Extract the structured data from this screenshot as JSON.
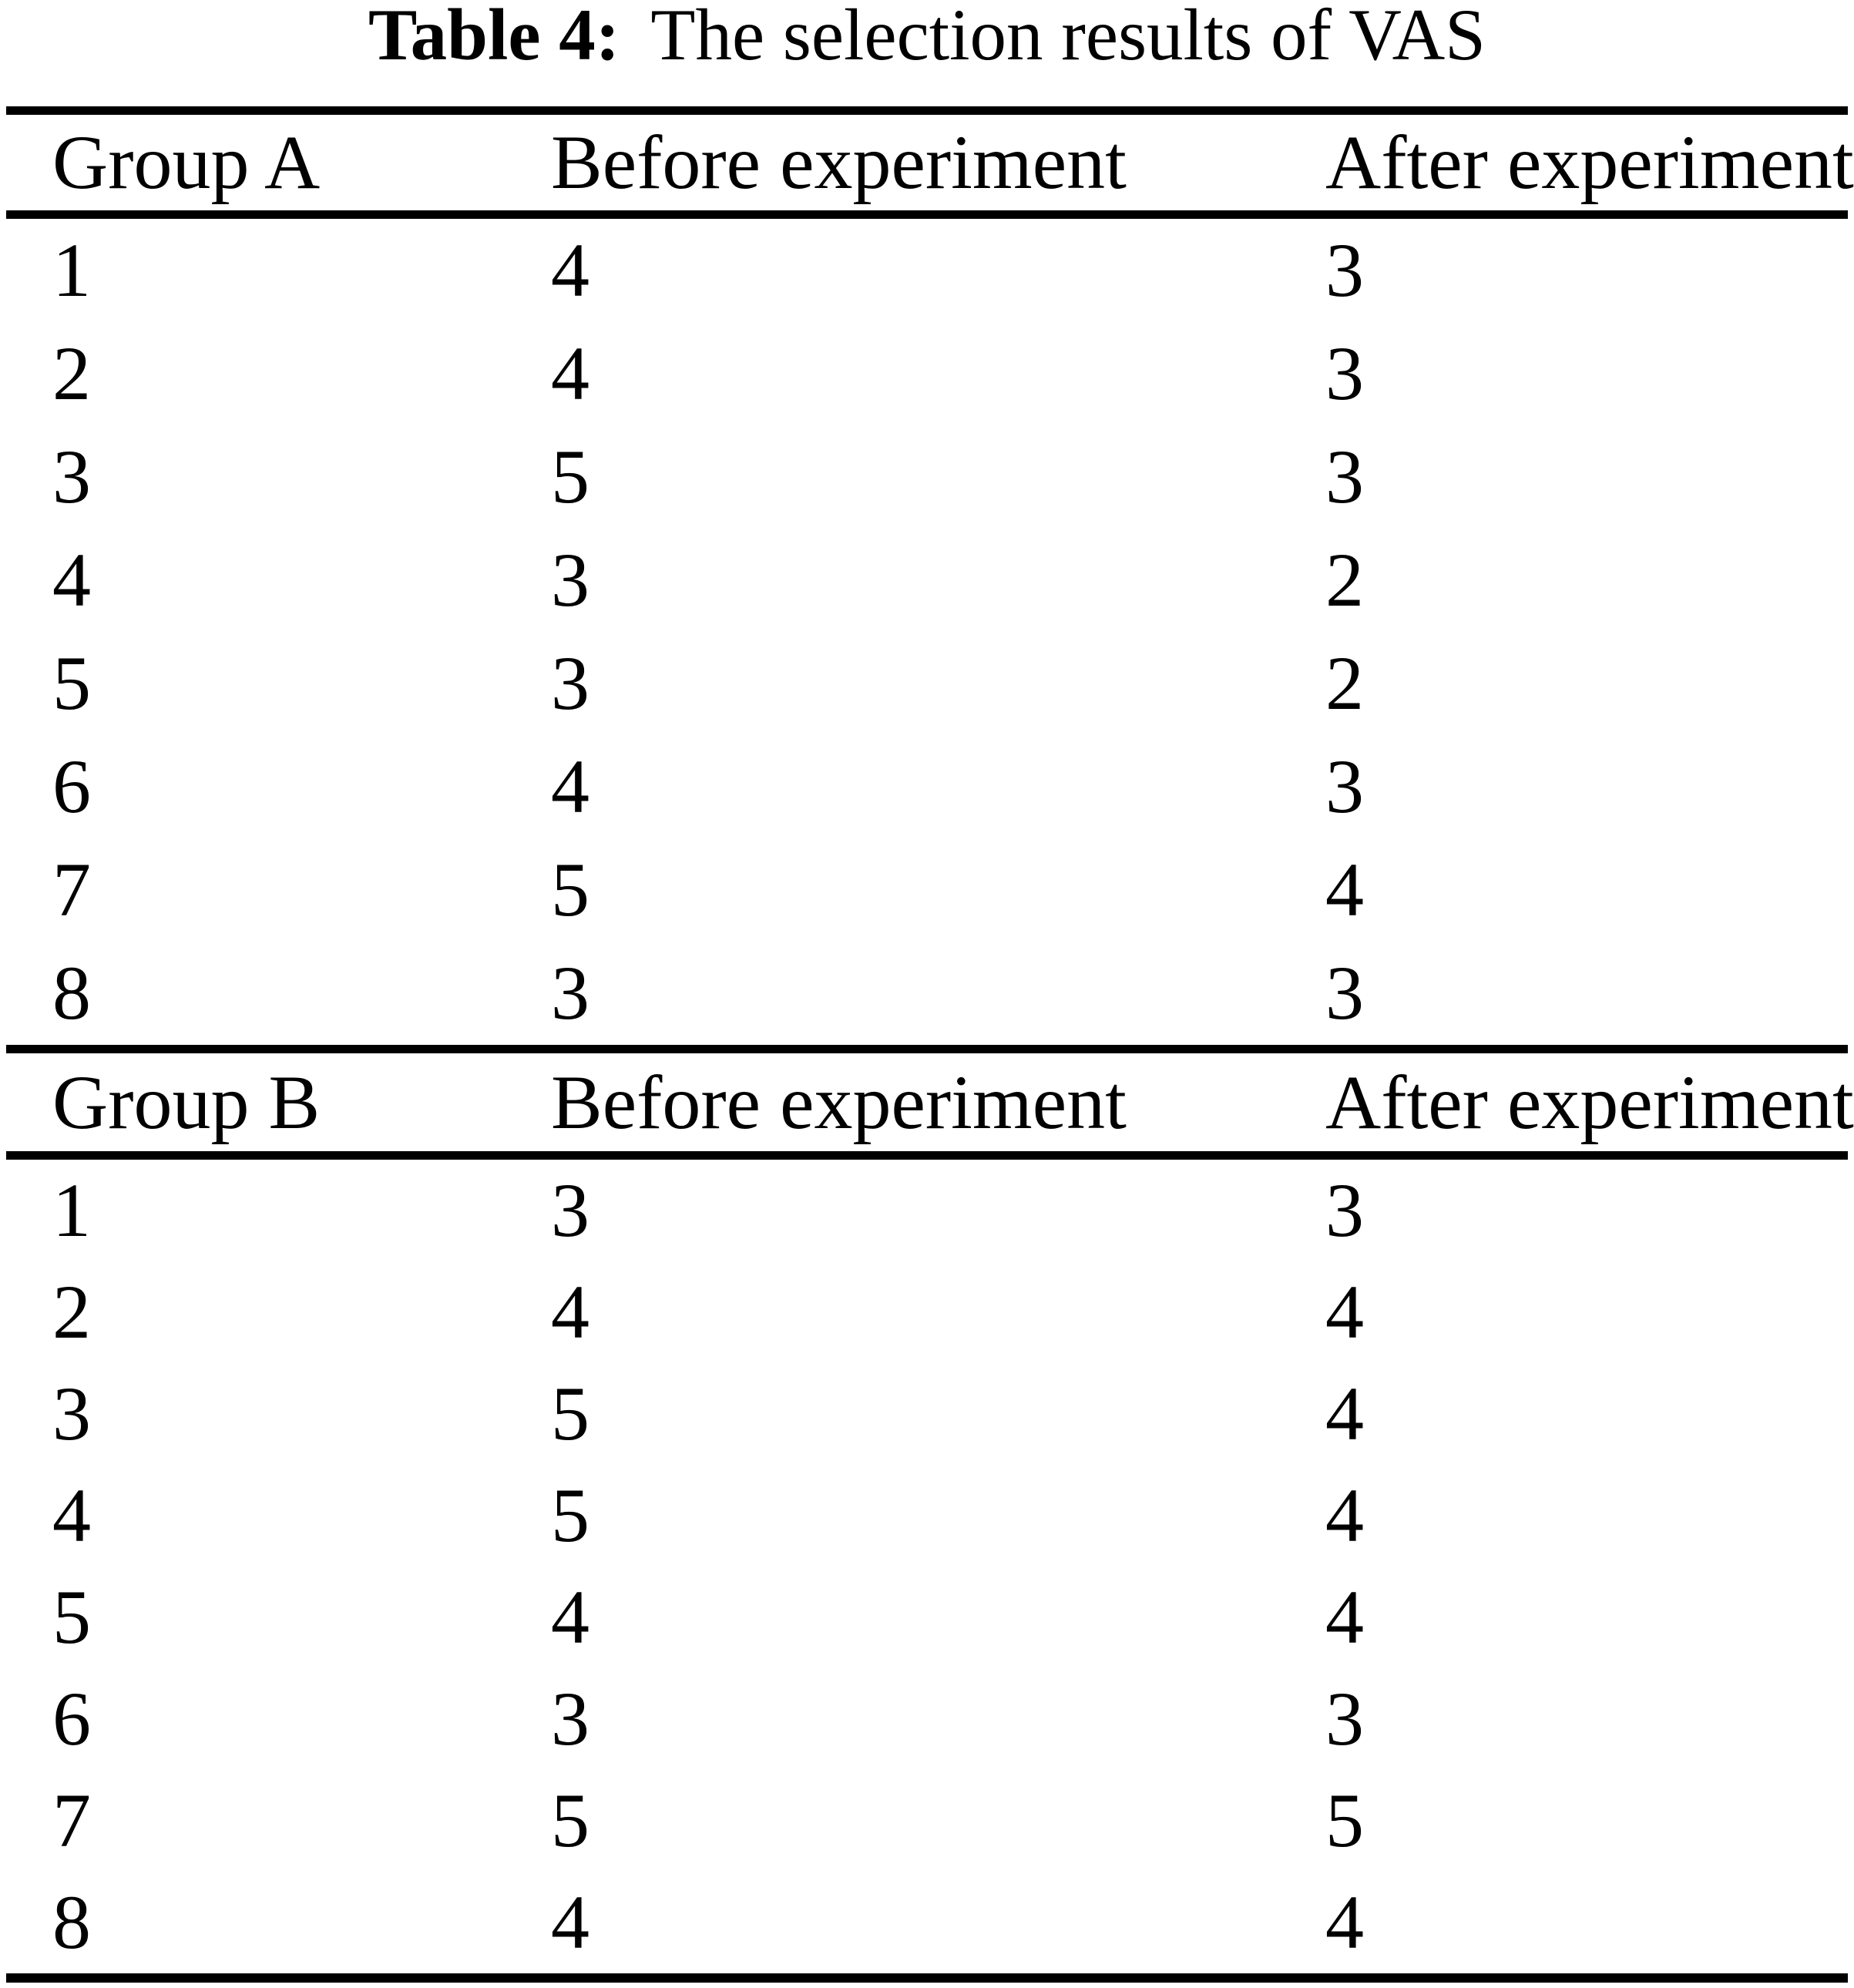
{
  "title": {
    "label": "Table 4:",
    "text": "The selection results of VAS"
  },
  "colors": {
    "text": "#000000",
    "background": "#ffffff",
    "rule": "#000000"
  },
  "tables": [
    {
      "group_header": "Group A",
      "col2_header": "Before experiment",
      "col3_header": "After experiment",
      "rows": [
        {
          "id": "1",
          "before": "4",
          "after": "3"
        },
        {
          "id": "2",
          "before": "4",
          "after": "3"
        },
        {
          "id": "3",
          "before": "5",
          "after": "3"
        },
        {
          "id": "4",
          "before": "3",
          "after": "2"
        },
        {
          "id": "5",
          "before": "3",
          "after": "2"
        },
        {
          "id": "6",
          "before": "4",
          "after": "3"
        },
        {
          "id": "7",
          "before": "5",
          "after": "4"
        },
        {
          "id": "8",
          "before": "3",
          "after": "3"
        }
      ]
    },
    {
      "group_header": "Group B",
      "col2_header": "Before experiment",
      "col3_header": "After experiment",
      "rows": [
        {
          "id": "1",
          "before": "3",
          "after": "3"
        },
        {
          "id": "2",
          "before": "4",
          "after": "4"
        },
        {
          "id": "3",
          "before": "5",
          "after": "4"
        },
        {
          "id": "4",
          "before": "5",
          "after": "4"
        },
        {
          "id": "5",
          "before": "4",
          "after": "4"
        },
        {
          "id": "6",
          "before": "3",
          "after": "3"
        },
        {
          "id": "7",
          "before": "5",
          "after": "5"
        },
        {
          "id": "8",
          "before": "4",
          "after": "4"
        }
      ]
    }
  ]
}
